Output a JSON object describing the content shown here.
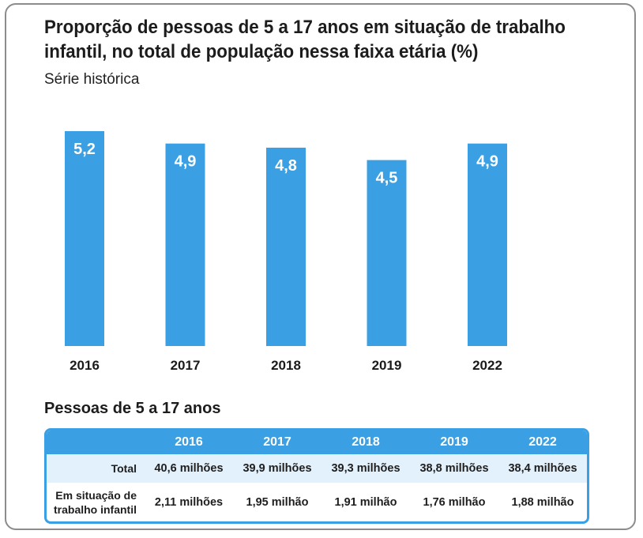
{
  "chart_data": {
    "type": "bar",
    "title": "Proporção de pessoas de 5 a 17 anos em situação de trabalho infantil, no total de população nessa faixa etária (%)",
    "subtitle": "Série histórica",
    "categories": [
      "2016",
      "2017",
      "2018",
      "2019",
      "2022"
    ],
    "values": [
      5.2,
      4.9,
      4.8,
      4.5,
      4.9
    ],
    "value_labels": [
      "5,2",
      "4,9",
      "4,8",
      "4,5",
      "4,9"
    ],
    "ylim": [
      0,
      5.2
    ],
    "grid": false,
    "bar_color": "#3ba0e3"
  },
  "table": {
    "title": "Pessoas de 5 a 17 anos",
    "header": [
      "",
      "2016",
      "2017",
      "2018",
      "2019",
      "2022"
    ],
    "rows": [
      {
        "label": "Total",
        "values": [
          "40,6 milhões",
          "39,9 milhões",
          "39,3 milhões",
          "38,8 milhões",
          "38,4 milhões"
        ]
      },
      {
        "label": "Em situação de trabalho infantil",
        "values": [
          "2,11 milhões",
          "1,95 milhão",
          "1,91 milhão",
          "1,76 milhão",
          "1,88 milhão"
        ]
      }
    ],
    "header_color": "#3ba0e3",
    "stripe_color": "#e3f1fc"
  }
}
